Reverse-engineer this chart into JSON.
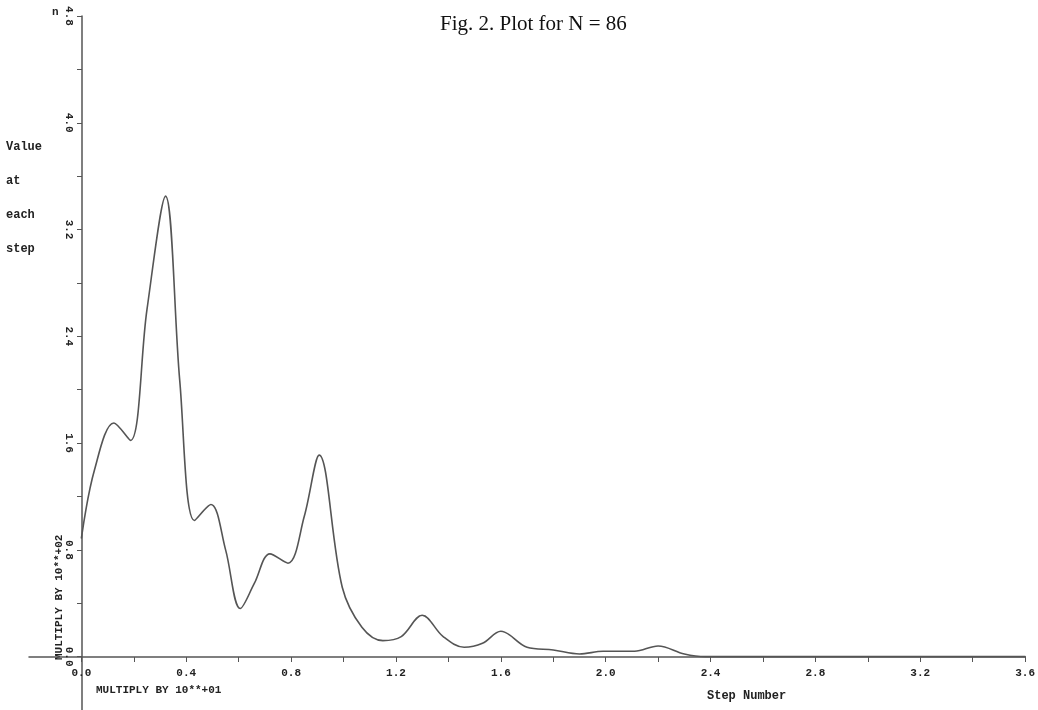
{
  "chart_data": {
    "type": "line",
    "title": "Fig. 2. Plot for N = 86",
    "xlabel": "Step Number",
    "ylabel": "Value at each step",
    "annotations": [
      "MULTIPLY BY 10**+02",
      "MULTIPLY BY 10**+01",
      "n"
    ],
    "x": [
      0,
      0.05,
      0.124,
      0.187,
      0.25,
      0.321,
      0.375,
      0.431,
      0.494,
      0.55,
      0.606,
      0.66,
      0.719,
      0.788,
      0.85,
      0.907,
      0.995,
      1.07,
      1.15,
      1.22,
      1.3,
      1.38,
      1.46,
      1.53,
      1.6,
      1.7,
      1.8,
      1.9,
      1.99,
      2.11,
      2.2,
      2.3,
      2.38,
      2.8,
      3.2,
      3.6
    ],
    "series": [
      {
        "color": "#555555",
        "values": [
          0.89,
          1.4,
          1.75,
          1.62,
          2.6,
          3.45,
          2.07,
          1.02,
          1.14,
          0.8,
          0.36,
          0.55,
          0.77,
          0.7,
          1.05,
          1.51,
          0.52,
          0.22,
          0.12,
          0.15,
          0.31,
          0.15,
          0.07,
          0.1,
          0.19,
          0.07,
          0.05,
          0.02,
          0.04,
          0.04,
          0.08,
          0.02,
          0,
          0,
          0,
          0
        ]
      }
    ],
    "xlim": [
      -0.2,
      3.6
    ],
    "ylim": [
      -0.4,
      4.8
    ],
    "xticks": [
      {
        "value": 0,
        "label": "0.0"
      },
      {
        "value": 0.2,
        "label": null
      },
      {
        "value": 0.4,
        "label": "0.4"
      },
      {
        "value": 0.6,
        "label": null
      },
      {
        "value": 0.8,
        "label": "0.8"
      },
      {
        "value": 1.0,
        "label": null
      },
      {
        "value": 1.2,
        "label": "1.2"
      },
      {
        "value": 1.4,
        "label": null
      },
      {
        "value": 1.6,
        "label": "1.6"
      },
      {
        "value": 1.8,
        "label": null
      },
      {
        "value": 2.0,
        "label": "2.0"
      },
      {
        "value": 2.2,
        "label": null
      },
      {
        "value": 2.4,
        "label": "2.4"
      },
      {
        "value": 2.6,
        "label": null
      },
      {
        "value": 2.8,
        "label": "2.8"
      },
      {
        "value": 3.0,
        "label": null
      },
      {
        "value": 3.2,
        "label": "3.2"
      },
      {
        "value": 3.4,
        "label": null
      },
      {
        "value": 3.6,
        "label": "3.6"
      }
    ],
    "yticks": [
      {
        "value": 0,
        "label": "0.0"
      },
      {
        "value": 0.4,
        "label": null
      },
      {
        "value": 0.8,
        "label": "0.8"
      },
      {
        "value": 1.2,
        "label": null
      },
      {
        "value": 1.6,
        "label": "1.6"
      },
      {
        "value": 2.0,
        "label": null
      },
      {
        "value": 2.4,
        "label": "2.4"
      },
      {
        "value": 2.8,
        "label": null
      },
      {
        "value": 3.2,
        "label": "3.2"
      },
      {
        "value": 3.6,
        "label": null
      },
      {
        "value": 4.0,
        "label": "4.0"
      },
      {
        "value": 4.4,
        "label": null
      },
      {
        "value": 4.8,
        "label": "4.8"
      }
    ],
    "marker": "none",
    "line_style": "solid"
  }
}
